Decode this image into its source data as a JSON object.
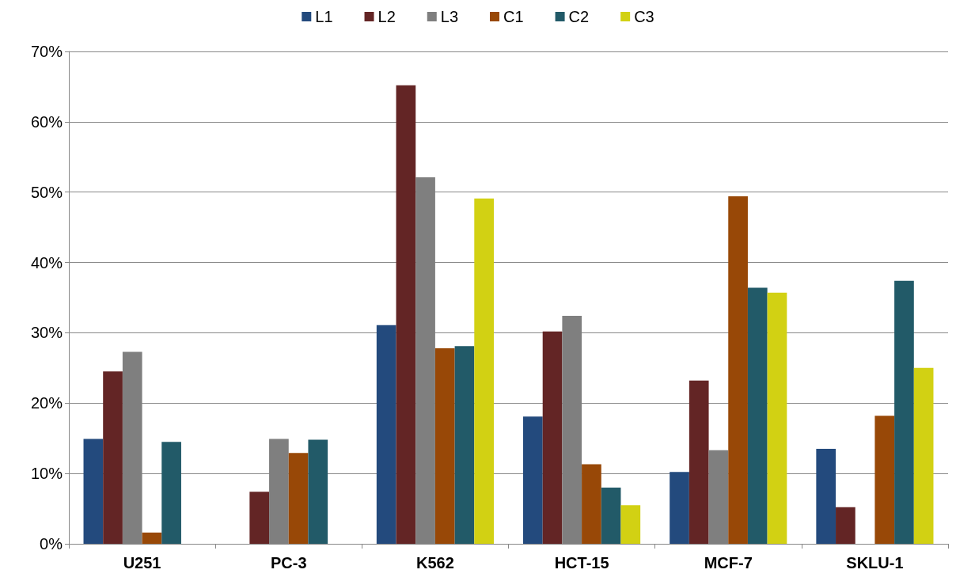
{
  "chart_data": {
    "type": "bar",
    "categories": [
      "U251",
      "PC-3",
      "K562",
      "HCT-15",
      "MCF-7",
      "SKLU-1"
    ],
    "series": [
      {
        "name": "L1",
        "color": "#234a7d",
        "values": [
          14.9,
          null,
          31.1,
          18.1,
          10.2,
          13.5
        ]
      },
      {
        "name": "L2",
        "color": "#632525",
        "values": [
          24.5,
          7.4,
          65.2,
          30.2,
          23.2,
          5.2
        ]
      },
      {
        "name": "L3",
        "color": "#7f7f7f",
        "values": [
          27.3,
          14.9,
          52.1,
          32.4,
          13.3,
          null
        ]
      },
      {
        "name": "C1",
        "color": "#984807",
        "values": [
          1.6,
          12.9,
          27.8,
          11.3,
          49.4,
          18.2
        ]
      },
      {
        "name": "C2",
        "color": "#225a68",
        "values": [
          14.5,
          14.8,
          28.1,
          8.0,
          36.4,
          37.4
        ]
      },
      {
        "name": "C3",
        "color": "#d2d113",
        "values": [
          null,
          null,
          49.1,
          5.5,
          35.7,
          25.0
        ]
      }
    ],
    "ylim": [
      0,
      70
    ],
    "yticks": [
      {
        "value": 0,
        "label": "0%"
      },
      {
        "value": 10,
        "label": "10%"
      },
      {
        "value": 20,
        "label": "20%"
      },
      {
        "value": 30,
        "label": "30%"
      },
      {
        "value": 40,
        "label": "40%"
      },
      {
        "value": 50,
        "label": "50%"
      },
      {
        "value": 60,
        "label": "60%"
      },
      {
        "value": 70,
        "label": "70%"
      }
    ],
    "grid": "y",
    "legend": "top"
  }
}
